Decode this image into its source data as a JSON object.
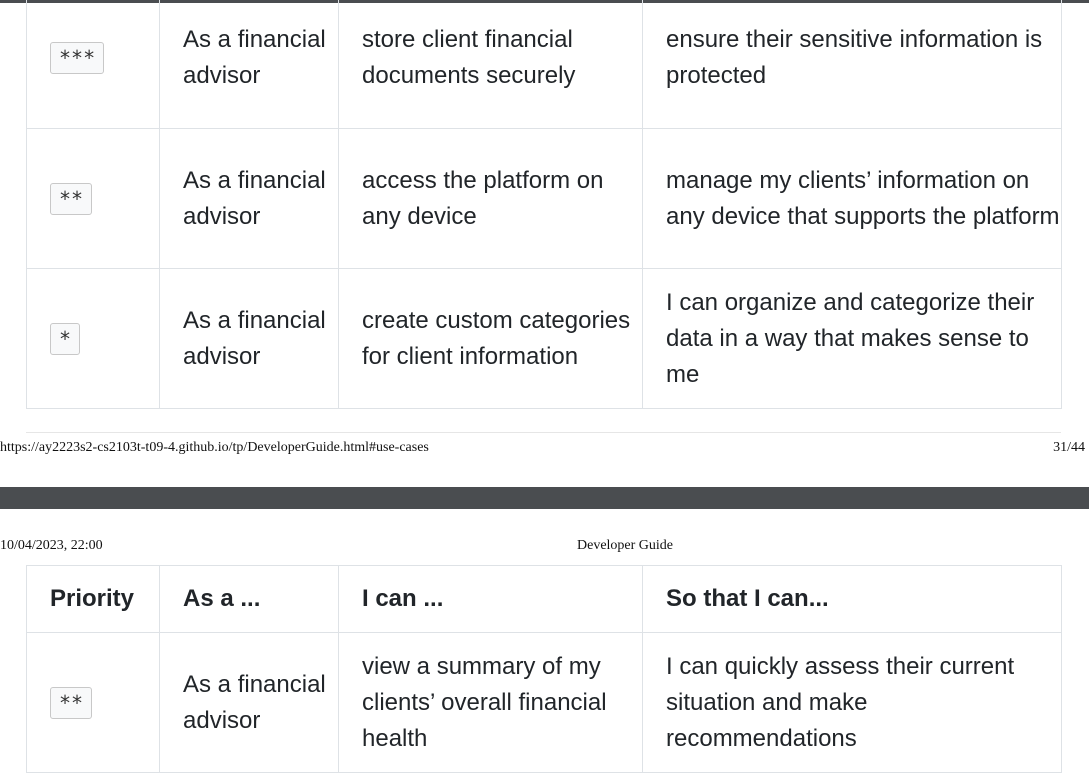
{
  "page1": {
    "rows": [
      {
        "priority": "***",
        "as_a": "As a financial advisor",
        "i_can": "store client financial documents securely",
        "so_that": "ensure their sensitive information is protected"
      },
      {
        "priority": "**",
        "as_a": "As a financial advisor",
        "i_can": "access the platform on any device",
        "so_that": "manage my clients’ information on any device that supports the platform"
      },
      {
        "priority": "*",
        "as_a": "As a financial advisor",
        "i_can": "create custom categories for client information",
        "so_that": "I can organize and categorize their data in a way that makes sense to me"
      }
    ],
    "footer_url": "https://ay2223s2-cs2103t-t09-4.github.io/tp/DeveloperGuide.html#use-cases",
    "footer_page": "31/44"
  },
  "page2": {
    "header_date": "10/04/2023, 22:00",
    "header_title": "Developer Guide",
    "columns": [
      "Priority",
      "As a ...",
      "I can ...",
      "So that I can..."
    ],
    "rows": [
      {
        "priority": "**",
        "as_a": "As a financial advisor",
        "i_can": "view a summary of my clients’ overall financial health",
        "so_that": "I can quickly assess their current situation and make recommendations"
      }
    ]
  }
}
